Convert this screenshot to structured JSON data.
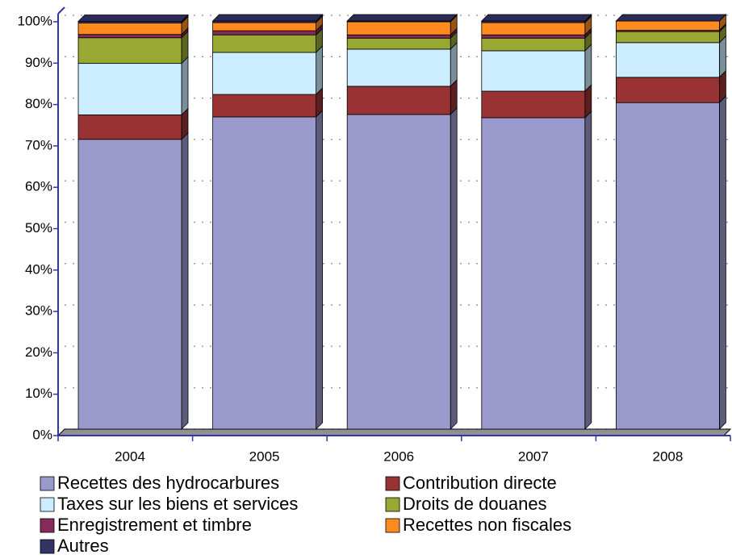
{
  "chart_data": {
    "type": "bar",
    "stacked": true,
    "categories": [
      "2004",
      "2005",
      "2006",
      "2007",
      "2008"
    ],
    "series": [
      {
        "name": "Recettes des hydrocarbures",
        "color": "#9999cc",
        "values": [
          71,
          76.5,
          77.1,
          76.3,
          80
        ]
      },
      {
        "name": "Contribution directe",
        "color": "#993333",
        "values": [
          6,
          5.5,
          6.9,
          6.5,
          6.2
        ]
      },
      {
        "name": "Taxes sur les biens et services",
        "color": "#ccecff",
        "values": [
          12.6,
          10.3,
          9.1,
          9.9,
          8.5
        ]
      },
      {
        "name": "Droits de douanes",
        "color": "#99a833",
        "values": [
          6.3,
          4.3,
          2.7,
          3.1,
          2.7
        ]
      },
      {
        "name": "Enregistrement et timbre",
        "color": "#862a5a",
        "values": [
          0.8,
          1,
          0.8,
          0.8,
          0.3
        ]
      },
      {
        "name": "Recettes non fiscales",
        "color": "#ff8b1f",
        "values": [
          2.8,
          2,
          3.2,
          3,
          2.3
        ]
      },
      {
        "name": "Autres",
        "color": "#333366",
        "values": [
          0.4,
          0.4,
          0.2,
          0.4,
          0
        ]
      }
    ],
    "ylim": [
      0,
      100
    ],
    "yticks": [
      {
        "value": 0,
        "label": "0%"
      },
      {
        "value": 10,
        "label": "10%"
      },
      {
        "value": 20,
        "label": "20%"
      },
      {
        "value": 30,
        "label": "30%"
      },
      {
        "value": 40,
        "label": "40%"
      },
      {
        "value": 50,
        "label": "50%"
      },
      {
        "value": 60,
        "label": "60%"
      },
      {
        "value": 70,
        "label": "70%"
      },
      {
        "value": 80,
        "label": "80%"
      },
      {
        "value": 90,
        "label": "90%"
      },
      {
        "value": 100,
        "label": "100%"
      }
    ],
    "grid": true,
    "legend": "bottom"
  }
}
